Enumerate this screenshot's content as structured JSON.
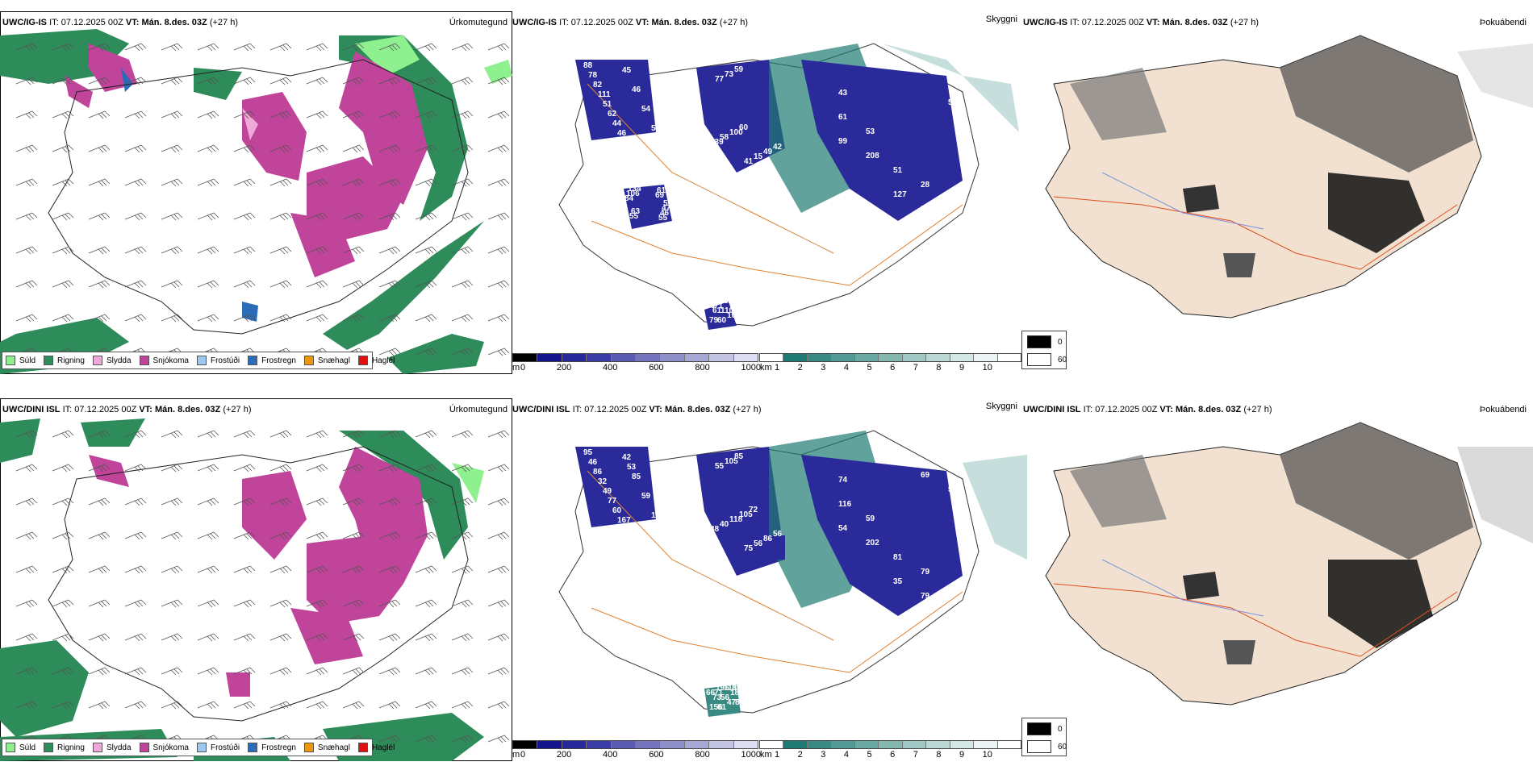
{
  "panels": [
    {
      "row": "top",
      "model": "UWC/IG-IS",
      "it_label": "IT:",
      "it_value": "07.12.2025 00Z",
      "vt_label": "VT:",
      "vt_value": "Mán. 8.des. 03Z",
      "lead": "(+27 h)",
      "variable_precip": "Úrkomutegund",
      "variable_vis": "Skyggni",
      "variable_fog": "Þokuábendi"
    },
    {
      "row": "bottom",
      "model": "UWC/DINI ISL",
      "it_label": "IT:",
      "it_value": "07.12.2025 00Z",
      "vt_label": "VT:",
      "vt_value": "Mán. 8.des. 03Z",
      "lead": "(+27 h)",
      "variable_precip": "Úrkomutegund",
      "variable_vis": "Skyggni",
      "variable_fog": "Þokuábendi"
    }
  ],
  "precip_legend": [
    {
      "label": "Súld",
      "color": "#8ef08e"
    },
    {
      "label": "Rigning",
      "color": "#2e8b5a"
    },
    {
      "label": "Slydda",
      "color": "#f0a8d8"
    },
    {
      "label": "Snjókoma",
      "color": "#c0449a"
    },
    {
      "label": "Frostúði",
      "color": "#9cc8f0"
    },
    {
      "label": "Frostregn",
      "color": "#2a6cb8"
    },
    {
      "label": "Snæhagl",
      "color": "#f0960a"
    },
    {
      "label": "Haglél",
      "color": "#e01010"
    }
  ],
  "cloudbase_scale": {
    "unit": "m",
    "ticks": [
      "0",
      "200",
      "400",
      "600",
      "800",
      "1000"
    ],
    "colors": [
      "#000000",
      "#14148c",
      "#28289a",
      "#3c3ca6",
      "#5a5ab2",
      "#7474be",
      "#8e8ec8",
      "#a8a8d6",
      "#c4c4e4",
      "#dedef2"
    ]
  },
  "visibility_scale": {
    "unit": "km",
    "ticks": [
      "1",
      "2",
      "3",
      "4",
      "5",
      "6",
      "7",
      "8",
      "9",
      "10"
    ],
    "colors": [
      "#ffffff",
      "#207a74",
      "#3a8a84",
      "#529a94",
      "#6aa8a2",
      "#86b8b2",
      "#a0c8c4",
      "#bcd8d4",
      "#d6e8e6",
      "#eef6f5",
      "#ffffff"
    ]
  },
  "fog_legend": [
    {
      "label": "0",
      "color": "#000000"
    },
    {
      "label": "60",
      "color": "#ffffff"
    }
  ],
  "cloudbase_labels_top": [
    "88",
    "77",
    "43",
    "69",
    "71",
    "82",
    "73",
    "28",
    "61",
    "26",
    "51",
    "59",
    "53",
    "55",
    "60",
    "44",
    "41",
    "48",
    "46",
    "64",
    "45",
    "15",
    "51",
    "47",
    "110",
    "46",
    "49",
    "61",
    "51",
    "50",
    "54",
    "42",
    "37",
    "84",
    "82",
    "59",
    "139",
    "208",
    "106",
    "79",
    "78",
    "58",
    "57",
    "134",
    "107",
    "111",
    "100",
    "127",
    "55",
    "61",
    "62",
    "60",
    "99",
    "63",
    "36",
    "46"
  ],
  "cloudbase_labels_bottom": [
    "95",
    "55",
    "74",
    "69",
    "71",
    "86",
    "105",
    "79",
    "72",
    "87",
    "49",
    "85",
    "59",
    "68",
    "61",
    "60",
    "75",
    "63",
    "104",
    "81",
    "42",
    "56",
    "81",
    "161",
    "56",
    "85",
    "86",
    "116",
    "102",
    "66",
    "59",
    "56",
    "79",
    "57",
    "113",
    "110",
    "48",
    "202",
    "222",
    "156",
    "46",
    "40",
    "57",
    "47",
    "47",
    "32",
    "118",
    "35",
    "38",
    "73",
    "77",
    "105",
    "54",
    "43",
    "186",
    "167",
    "72",
    "69",
    "45",
    "195",
    "53"
  ]
}
